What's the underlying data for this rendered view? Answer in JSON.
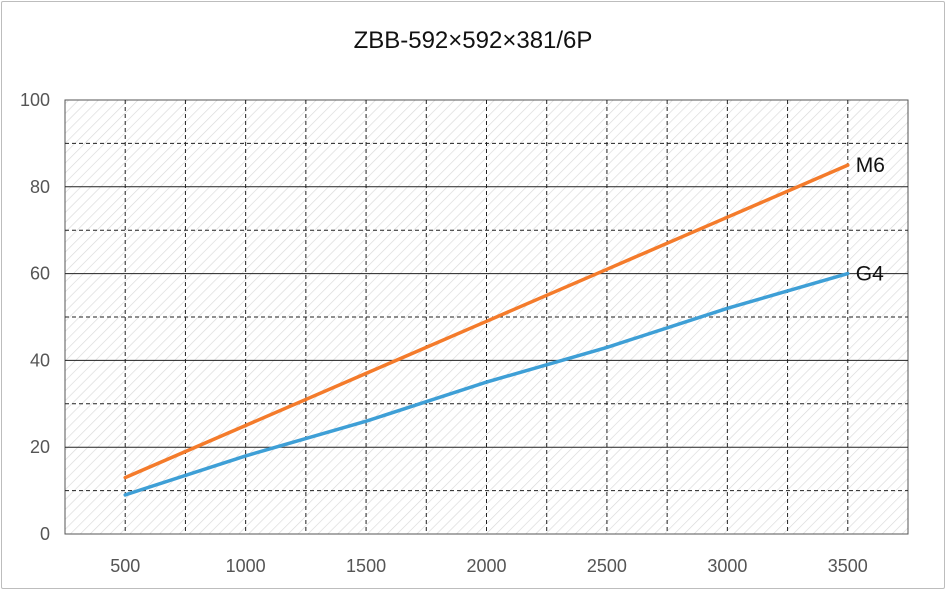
{
  "chart_data": {
    "type": "line",
    "title": "ZBB-592×592×381/6P",
    "xlabel": "",
    "ylabel": "",
    "x": [
      500,
      1000,
      1500,
      2000,
      2500,
      3000,
      3500
    ],
    "xlim": [
      250,
      3750
    ],
    "ylim": [
      0,
      100
    ],
    "x_ticks": [
      "500",
      "1000",
      "1500",
      "2000",
      "2500",
      "3000",
      "3500"
    ],
    "y_ticks": [
      "0",
      "20",
      "40",
      "60",
      "80",
      "100"
    ],
    "grid": true,
    "series": [
      {
        "name": "M6",
        "color": "#f47b2b",
        "values": [
          13,
          25,
          37,
          49,
          61,
          73,
          85
        ]
      },
      {
        "name": "G4",
        "color": "#3e9fd6",
        "values": [
          9,
          18,
          26,
          35,
          43,
          52,
          60
        ]
      }
    ]
  }
}
